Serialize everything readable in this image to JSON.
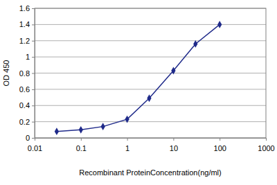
{
  "chart_data": {
    "type": "line",
    "x_label": "Recombinant ProteinConcentration(ng/ml)",
    "y_label": "OD 450",
    "x": [
      0.03,
      0.1,
      0.3,
      1,
      3,
      10,
      30,
      100
    ],
    "values": [
      0.08,
      0.1,
      0.14,
      0.23,
      0.49,
      0.83,
      1.16,
      1.4
    ],
    "color": "#1f2a8a",
    "marker": "diamond",
    "log": "x",
    "xlim": [
      0.01,
      1000
    ],
    "xticks": [
      0.01,
      0.1,
      1,
      10,
      100,
      1000
    ],
    "ylim": [
      0,
      1.6
    ],
    "yticks": [
      0,
      0.2,
      0.4,
      0.6,
      0.8,
      1,
      1.2,
      1.4,
      1.6
    ],
    "grid": true
  }
}
